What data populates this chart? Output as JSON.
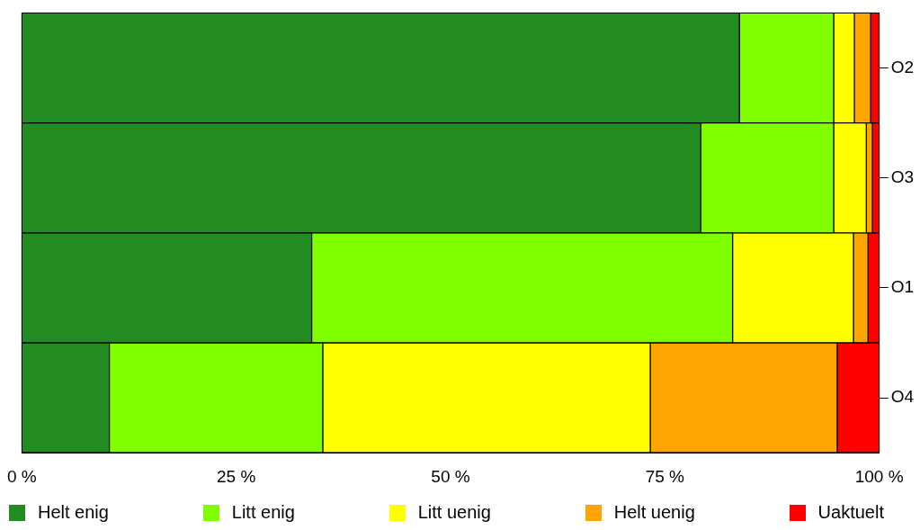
{
  "chart_data": {
    "type": "bar",
    "orientation": "horizontal",
    "stacked": true,
    "categories": [
      "O2",
      "O3",
      "O1",
      "O4"
    ],
    "series": [
      {
        "name": "Helt enig",
        "color": "#228b22",
        "values": [
          83.7,
          79.2,
          33.8,
          10.2
        ]
      },
      {
        "name": "Litt enig",
        "color": "#7fff00",
        "values": [
          11.0,
          15.5,
          49.1,
          24.9
        ]
      },
      {
        "name": "Litt uenig",
        "color": "#ffff00",
        "values": [
          2.4,
          3.8,
          14.1,
          38.2
        ]
      },
      {
        "name": "Helt uenig",
        "color": "#ffa500",
        "values": [
          1.9,
          0.7,
          1.7,
          21.8
        ]
      },
      {
        "name": "Uaktuelt",
        "color": "#ff0000",
        "values": [
          1.0,
          0.8,
          1.3,
          4.9
        ]
      }
    ],
    "xlim": [
      0,
      100
    ],
    "xticks": [
      {
        "value": 0,
        "label": "0 %"
      },
      {
        "value": 25,
        "label": "25 %"
      },
      {
        "value": 50,
        "label": "50 %"
      },
      {
        "value": 75,
        "label": "75 %"
      },
      {
        "value": 100,
        "label": "100 %"
      }
    ],
    "grid": false,
    "legend": "bottom"
  }
}
